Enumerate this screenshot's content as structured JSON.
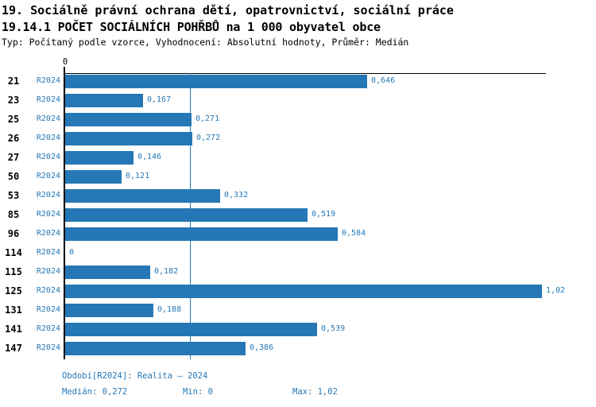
{
  "header": {
    "title_line1": "19. Sociálně právní ochrana dětí, opatrovnictví, sociální práce",
    "title_line2": "19.14.1 POČET SOCIÁLNÍCH POHŘBŮ na 1 000 obyvatel obce",
    "subtitle": "Typ: Počítaný podle vzorce, Vyhodnocení: Absolutní hodnoty, Průměr: Medián"
  },
  "chart_data": {
    "type": "bar",
    "orientation": "horizontal",
    "axis_zero_label": "0",
    "series_label": "R2024",
    "categories": [
      "21",
      "23",
      "25",
      "26",
      "27",
      "50",
      "53",
      "85",
      "96",
      "114",
      "115",
      "125",
      "131",
      "141",
      "147"
    ],
    "values": [
      0.646,
      0.167,
      0.271,
      0.272,
      0.146,
      0.121,
      0.332,
      0.519,
      0.584,
      0,
      0.182,
      1.02,
      0.188,
      0.539,
      0.386
    ],
    "value_labels": [
      "0,646",
      "0,167",
      "0,271",
      "0,272",
      "0,146",
      "0,121",
      "0,332",
      "0,519",
      "0,584",
      "0",
      "0,182",
      "1,02",
      "0,188",
      "0,539",
      "0,386"
    ],
    "median": 0.272,
    "min": 0,
    "max": 1.02,
    "xlim": [
      0,
      1.03
    ],
    "grid": false,
    "bar_color": "#2578b5",
    "median_line_color": "#2578b5",
    "label_color": "#2578b5"
  },
  "footer": {
    "period": "Období[R2024]: Realita – 2024",
    "median_label": "Medián: 0,272",
    "min_label": "Min: 0",
    "max_label": "Max: 1,02"
  }
}
